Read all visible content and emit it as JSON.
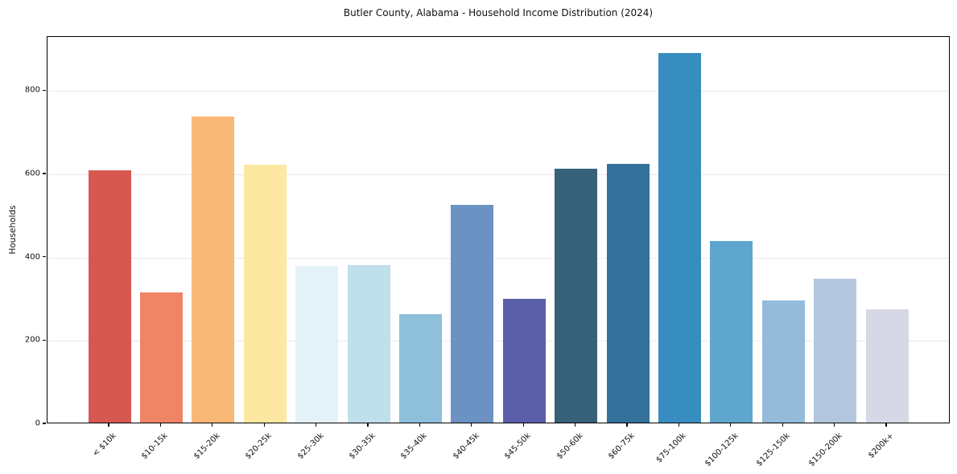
{
  "title": "Butler County, Alabama - Household Income Distribution (2024)",
  "chart_data": {
    "type": "bar",
    "title": "Butler County, Alabama - Household Income Distribution (2024)",
    "xlabel": "",
    "ylabel": "Households",
    "categories": [
      "< $10k",
      "$10-15k",
      "$15-20k",
      "$20-25k",
      "$25-30k",
      "$30-35k",
      "$35-40k",
      "$40-45k",
      "$45-50k",
      "$50-60k",
      "$60-75k",
      "$75-100k",
      "$100-125k",
      "$125-150k",
      "$150-200k",
      "$200k+"
    ],
    "values": [
      605,
      313,
      736,
      620,
      377,
      378,
      260,
      523,
      297,
      610,
      622,
      887,
      436,
      293,
      345,
      272
    ],
    "bar_colors": [
      "#d65850",
      "#f08466",
      "#fab877",
      "#fde8a2",
      "#e4f2f8",
      "#bfdfeb",
      "#8ebfdb",
      "#6c92c4",
      "#5a5ea9",
      "#376079",
      "#34719a",
      "#388dc0",
      "#5ea6ce",
      "#94bbda",
      "#b3c6de",
      "#d7d8e6"
    ],
    "ylim": [
      0,
      930
    ],
    "yticks": [
      0,
      200,
      400,
      600,
      800
    ],
    "grid": "horizontal",
    "legend": "none"
  },
  "colors": {
    "background": "#ffffff",
    "grid": "#e9e9e9",
    "spine": "#000000",
    "text": "#111111"
  }
}
